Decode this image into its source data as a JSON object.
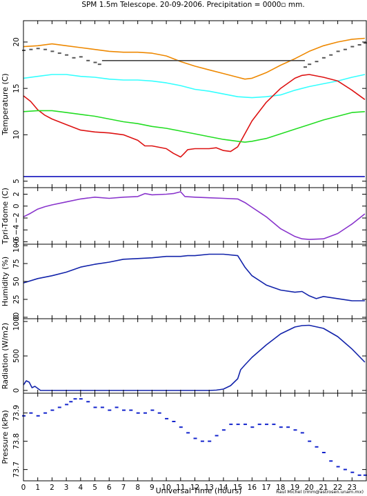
{
  "title": "SPM 1.5m Telescope. 20-09-2006. Precipitation = 0000▫ mm.",
  "credit": "Raul Michel (rmm@astrosen.unam.mx)",
  "chart_data": [
    {
      "type": "line",
      "ylabel": "Temperature (C)",
      "xlim": [
        0,
        24
      ],
      "ylim": [
        4.3,
        22.3
      ],
      "yticks": [
        5,
        10,
        15,
        20
      ],
      "series": [
        {
          "color": "#ee8800",
          "style": "line",
          "x": [
            0,
            1,
            2,
            3,
            4,
            5,
            6,
            7,
            8,
            9,
            10,
            10.5,
            11,
            12,
            13,
            14,
            15,
            15.5,
            16,
            17,
            18,
            19,
            20,
            21,
            22,
            23,
            23.9
          ],
          "y": [
            19.5,
            19.6,
            19.8,
            19.6,
            19.4,
            19.2,
            19.0,
            18.9,
            18.9,
            18.8,
            18.5,
            18.2,
            17.9,
            17.4,
            17.0,
            16.6,
            16.2,
            16.0,
            16.1,
            16.7,
            17.5,
            18.2,
            19.0,
            19.6,
            20.0,
            20.3,
            20.4
          ]
        },
        {
          "color": "#33ffff",
          "style": "line",
          "x": [
            0,
            1,
            2,
            3,
            4,
            5,
            6,
            7,
            8,
            9,
            10,
            11,
            12,
            13,
            14,
            15,
            16,
            17,
            18,
            19,
            20,
            21,
            22,
            23,
            23.9
          ],
          "y": [
            16.1,
            16.3,
            16.5,
            16.5,
            16.3,
            16.2,
            16.0,
            15.9,
            15.9,
            15.8,
            15.6,
            15.3,
            14.9,
            14.7,
            14.4,
            14.1,
            14.0,
            14.1,
            14.3,
            14.8,
            15.2,
            15.5,
            15.8,
            16.2,
            16.5
          ]
        },
        {
          "color": "#dd1111",
          "style": "line",
          "x": [
            0,
            0.5,
            1,
            1.5,
            2,
            3,
            4,
            5,
            6,
            7,
            8,
            8.5,
            9,
            10,
            10.5,
            11,
            11.2,
            11.5,
            12,
            13,
            13.5,
            14,
            14.5,
            15,
            16,
            17,
            18,
            19,
            19.5,
            20,
            21,
            22,
            23,
            23.9
          ],
          "y": [
            14.2,
            13.6,
            12.7,
            12.1,
            11.7,
            11.1,
            10.5,
            10.3,
            10.2,
            10.0,
            9.4,
            8.8,
            8.8,
            8.5,
            8.0,
            7.6,
            7.9,
            8.4,
            8.5,
            8.5,
            8.6,
            8.3,
            8.2,
            8.7,
            11.5,
            13.5,
            15.0,
            16.1,
            16.4,
            16.5,
            16.2,
            15.8,
            14.8,
            13.8
          ]
        },
        {
          "color": "#22dd22",
          "style": "line",
          "x": [
            0,
            1,
            2,
            3,
            4,
            5,
            6,
            7,
            8,
            9,
            10,
            11,
            12,
            13,
            14,
            15,
            15.5,
            16,
            17,
            18,
            19,
            20,
            21,
            22,
            23,
            23.9
          ],
          "y": [
            12.5,
            12.6,
            12.6,
            12.4,
            12.2,
            12.0,
            11.7,
            11.4,
            11.2,
            10.9,
            10.7,
            10.4,
            10.1,
            9.8,
            9.5,
            9.3,
            9.2,
            9.3,
            9.6,
            10.1,
            10.6,
            11.1,
            11.6,
            12.0,
            12.4,
            12.5
          ]
        },
        {
          "color": "#1111bb",
          "style": "line",
          "x": [
            0,
            23.9
          ],
          "y": [
            5.5,
            5.5
          ]
        },
        {
          "color": "#444444",
          "style": "line",
          "x": [
            5.5,
            19.7
          ],
          "y": [
            18.0,
            18.0
          ]
        },
        {
          "color": "#555555",
          "style": "dots",
          "x": [
            0,
            0.5,
            1,
            1.5,
            2,
            2.5,
            3,
            3.5,
            4,
            4.5,
            5,
            5.3,
            19.7,
            20,
            20.5,
            21,
            21.5,
            22,
            22.5,
            23,
            23.5,
            23.9
          ],
          "y": [
            19.1,
            19.2,
            19.3,
            19.2,
            19.0,
            18.8,
            18.6,
            18.3,
            18.4,
            18.0,
            17.8,
            17.6,
            17.3,
            17.6,
            17.9,
            18.3,
            18.6,
            19.0,
            19.2,
            19.5,
            19.7,
            19.9
          ]
        }
      ]
    },
    {
      "type": "line",
      "ylabel": "Tpri-Tdome (C)",
      "xlim": [
        0,
        24
      ],
      "ylim": [
        -6.4,
        3.1
      ],
      "yticks": [
        -6,
        -4,
        -2,
        0,
        2
      ],
      "ytick_labels": [
        "−6",
        "−4",
        "−2",
        "0",
        "2"
      ],
      "series": [
        {
          "color": "#8833cc",
          "style": "line",
          "x": [
            0,
            0.5,
            1,
            1.5,
            2,
            3,
            4,
            5,
            6,
            7,
            8,
            8.5,
            9,
            10,
            10.5,
            11,
            11.3,
            12,
            13,
            14,
            15,
            15.5,
            16,
            17,
            18,
            19,
            19.5,
            20,
            21,
            22,
            23,
            23.9
          ],
          "y": [
            -1.8,
            -1.2,
            -0.5,
            -0.1,
            0.2,
            0.7,
            1.2,
            1.5,
            1.3,
            1.5,
            1.6,
            2.1,
            1.9,
            2.0,
            2.1,
            2.4,
            1.6,
            1.5,
            1.4,
            1.3,
            1.2,
            0.6,
            -0.2,
            -1.8,
            -3.8,
            -5.1,
            -5.5,
            -5.6,
            -5.5,
            -4.6,
            -3.0,
            -1.3
          ]
        }
      ]
    },
    {
      "type": "line",
      "ylabel": "Humidity (%)",
      "xlim": [
        0,
        24
      ],
      "ylim": [
        -2,
        102
      ],
      "yticks": [
        0,
        25,
        50,
        75,
        100
      ],
      "series": [
        {
          "color": "#1122aa",
          "style": "line",
          "x": [
            0,
            1,
            2,
            3,
            4,
            5,
            6,
            7,
            8,
            9,
            10,
            11,
            11.5,
            12,
            13,
            14,
            15,
            15.5,
            16,
            17,
            18,
            19,
            19.5,
            20,
            20.5,
            21,
            22,
            23,
            23.9
          ],
          "y": [
            48,
            54,
            58,
            63,
            70,
            74,
            77,
            81,
            82,
            83,
            85,
            85,
            86,
            86,
            88,
            88,
            86,
            70,
            58,
            45,
            38,
            35,
            36,
            30,
            26,
            29,
            26,
            23,
            23
          ]
        }
      ]
    },
    {
      "type": "line",
      "ylabel": "Radiation (W/m2)",
      "xlim": [
        0,
        24
      ],
      "ylim": [
        -40,
        1040
      ],
      "yticks": [
        0,
        500,
        1000
      ],
      "series": [
        {
          "color": "#1122aa",
          "style": "line",
          "x": [
            0,
            0.2,
            0.4,
            0.6,
            0.8,
            1,
            1.2,
            2,
            4,
            6,
            8,
            10,
            12,
            13,
            13.5,
            14,
            14.5,
            15,
            15.2,
            15.5,
            16,
            17,
            18,
            19,
            19.5,
            20,
            21,
            22,
            23,
            23.9
          ],
          "y": [
            80,
            140,
            120,
            40,
            60,
            30,
            0,
            0,
            0,
            0,
            0,
            0,
            0,
            0,
            5,
            20,
            70,
            170,
            300,
            370,
            480,
            660,
            820,
            920,
            940,
            945,
            900,
            780,
            600,
            410
          ]
        }
      ]
    },
    {
      "type": "scatter",
      "ylabel": "Pressure (kPa)",
      "xlim": [
        0,
        24
      ],
      "ylim": [
        73.66,
        73.97
      ],
      "yticks": [
        73.7,
        73.8,
        73.9
      ],
      "series": [
        {
          "color": "#1122cc",
          "style": "dots",
          "x": [
            0,
            0.5,
            1,
            1.5,
            2,
            2.5,
            3,
            3.3,
            3.6,
            4,
            4.5,
            5,
            5.5,
            6,
            6.5,
            7,
            7.5,
            8,
            8.5,
            9,
            9.5,
            10,
            10.5,
            11,
            11.5,
            12,
            12.5,
            13,
            13.5,
            14,
            14.5,
            15,
            15.5,
            16,
            16.5,
            17,
            17.5,
            18,
            18.5,
            19,
            19.5,
            20,
            20.5,
            21,
            21.5,
            22,
            22.5,
            23,
            23.5,
            23.9
          ],
          "y": [
            73.89,
            73.9,
            73.89,
            73.9,
            73.91,
            73.92,
            73.93,
            73.94,
            73.95,
            73.95,
            73.94,
            73.92,
            73.92,
            73.91,
            73.92,
            73.91,
            73.91,
            73.9,
            73.9,
            73.91,
            73.9,
            73.88,
            73.87,
            73.85,
            73.83,
            73.81,
            73.8,
            73.8,
            73.82,
            73.84,
            73.86,
            73.86,
            73.86,
            73.85,
            73.86,
            73.86,
            73.86,
            73.85,
            73.85,
            73.84,
            73.83,
            73.8,
            73.78,
            73.76,
            73.73,
            73.71,
            73.7,
            73.69,
            73.68,
            73.68
          ]
        }
      ]
    }
  ],
  "xaxis": {
    "label": "Universal Time (hours)",
    "ticks": [
      0,
      1,
      2,
      3,
      4,
      5,
      6,
      7,
      8,
      9,
      10,
      11,
      12,
      13,
      14,
      15,
      16,
      17,
      18,
      19,
      20,
      21,
      22,
      23
    ]
  }
}
